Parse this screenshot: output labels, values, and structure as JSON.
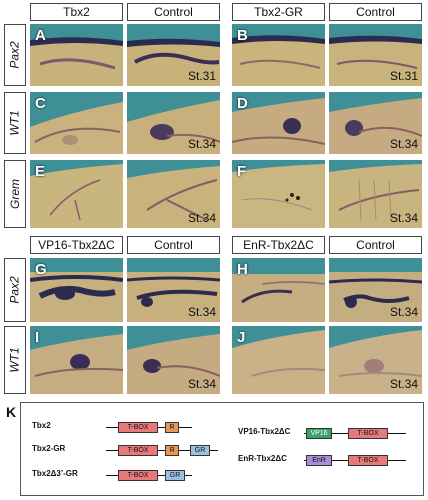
{
  "headers": {
    "top": [
      "Tbx2",
      "Control",
      "Tbx2-GR",
      "Control"
    ],
    "middle": [
      "VP16-Tbx2ΔC",
      "Control",
      "EnR-Tbx2ΔC",
      "Control"
    ]
  },
  "row_labels": [
    "Pax2",
    "WT1",
    "Grem",
    "Pax2",
    "WT1"
  ],
  "panels": {
    "A": {
      "letter": "A",
      "stage": ""
    },
    "A2": {
      "letter": "",
      "stage": "St.31"
    },
    "B": {
      "letter": "B",
      "stage": ""
    },
    "B2": {
      "letter": "",
      "stage": "St.31"
    },
    "C": {
      "letter": "C",
      "stage": ""
    },
    "C2": {
      "letter": "",
      "stage": "St.34"
    },
    "D": {
      "letter": "D",
      "stage": ""
    },
    "D2": {
      "letter": "",
      "stage": "St.34"
    },
    "E": {
      "letter": "E",
      "stage": ""
    },
    "E2": {
      "letter": "",
      "stage": "St.34"
    },
    "F": {
      "letter": "F",
      "stage": ""
    },
    "F2": {
      "letter": "",
      "stage": "St.34"
    },
    "G": {
      "letter": "G",
      "stage": ""
    },
    "G2": {
      "letter": "",
      "stage": "St.34"
    },
    "H": {
      "letter": "H",
      "stage": ""
    },
    "H2": {
      "letter": "",
      "stage": "St.34"
    },
    "I": {
      "letter": "I",
      "stage": ""
    },
    "I2": {
      "letter": "",
      "stage": "St.34"
    },
    "J": {
      "letter": "J",
      "stage": ""
    },
    "J2": {
      "letter": "",
      "stage": "St.34"
    }
  },
  "panel_k": {
    "label": "K",
    "constructs": {
      "tbx2": "Tbx2",
      "tbx2_gr": "Tbx2-GR",
      "tbx2d3_gr": "Tbx2Δ3’-GR",
      "vp16": "VP16-Tbx2ΔC",
      "enr": "EnR-Tbx2ΔC"
    },
    "domains": {
      "tbox": "T-BOX",
      "r": "R",
      "gr": "GR",
      "vp16": "VP16",
      "enr": "EnR"
    }
  }
}
